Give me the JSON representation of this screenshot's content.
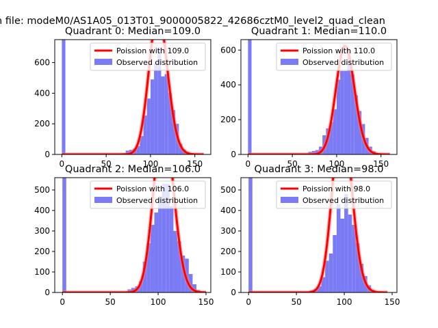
{
  "figure": {
    "suptitle": "n file: modeM0/AS1A05_013T01_9000005822_42686cztM0_level2_quad_clean"
  },
  "chart_data": [
    {
      "type": "bar",
      "title": "Quadrant 0: Median=109.0",
      "xlim": [
        -8,
        168
      ],
      "ylim": [
        0,
        750
      ],
      "xticks": [
        0,
        50,
        100,
        150
      ],
      "yticks": [
        0,
        200,
        400,
        600
      ],
      "legend": {
        "placement": "top-right",
        "entries": [
          "Poission with 109.0",
          "Observed distribution"
        ]
      },
      "colors": {
        "histogram": "#7b7bf5",
        "poisson": "#ff0000",
        "poisson_peak": "#f08080"
      },
      "histogram": {
        "name": "Observed distribution",
        "bin_width": 4,
        "bins": [
          [
            0,
            750
          ],
          [
            60,
            2
          ],
          [
            64,
            5
          ],
          [
            68,
            8
          ],
          [
            72,
            25
          ],
          [
            76,
            30
          ],
          [
            80,
            38
          ],
          [
            84,
            55
          ],
          [
            88,
            120
          ],
          [
            92,
            255
          ],
          [
            96,
            365
          ],
          [
            100,
            490
          ],
          [
            104,
            600
          ],
          [
            108,
            700
          ],
          [
            112,
            510
          ],
          [
            116,
            525
          ],
          [
            120,
            400
          ],
          [
            124,
            290
          ],
          [
            128,
            200
          ],
          [
            132,
            70
          ],
          [
            136,
            32
          ],
          [
            140,
            14
          ],
          [
            144,
            5
          ]
        ]
      },
      "poisson": {
        "name": "Poission with 109.0",
        "lambda": 109.0,
        "scale": 24000,
        "x_range": [
          0,
          160
        ]
      }
    },
    {
      "type": "bar",
      "title": "Quadrant 1: Median=110.0",
      "xlim": [
        -8,
        168
      ],
      "ylim": [
        0,
        660
      ],
      "xticks": [
        0,
        50,
        100,
        150
      ],
      "yticks": [
        0,
        200,
        400,
        600
      ],
      "legend": {
        "placement": "top-right",
        "entries": [
          "Poission with 110.0",
          "Observed distribution"
        ]
      },
      "colors": {
        "histogram": "#7b7bf5",
        "poisson": "#ff0000",
        "poisson_peak": "#f08080"
      },
      "histogram": {
        "name": "Observed distribution",
        "bin_width": 4,
        "bins": [
          [
            0,
            660
          ],
          [
            60,
            2
          ],
          [
            64,
            6
          ],
          [
            68,
            15
          ],
          [
            72,
            20
          ],
          [
            76,
            25
          ],
          [
            80,
            45
          ],
          [
            84,
            110
          ],
          [
            88,
            150
          ],
          [
            92,
            185
          ],
          [
            96,
            260
          ],
          [
            100,
            430
          ],
          [
            104,
            480
          ],
          [
            108,
            480
          ],
          [
            112,
            565
          ],
          [
            116,
            460
          ],
          [
            120,
            340
          ],
          [
            124,
            250
          ],
          [
            128,
            175
          ],
          [
            132,
            95
          ],
          [
            136,
            45
          ],
          [
            140,
            18
          ],
          [
            144,
            5
          ]
        ]
      },
      "poisson": {
        "name": "Poission with 110.0",
        "lambda": 110.0,
        "scale": 16400,
        "x_range": [
          0,
          160
        ]
      }
    },
    {
      "type": "bar",
      "title": "Quadrant 2: Median=106.0",
      "xlim": [
        -8,
        155
      ],
      "ylim": [
        0,
        560
      ],
      "xticks": [
        0,
        50,
        100,
        150
      ],
      "yticks": [
        0,
        100,
        200,
        300,
        400,
        500
      ],
      "legend": {
        "placement": "top-right",
        "entries": [
          "Poission with 106.0",
          "Observed distribution"
        ]
      },
      "colors": {
        "histogram": "#7b7bf5",
        "poisson": "#ff0000",
        "poisson_peak": "#f08080"
      },
      "histogram": {
        "name": "Observed distribution",
        "bin_width": 4,
        "bins": [
          [
            0,
            560
          ],
          [
            64,
            3
          ],
          [
            68,
            15
          ],
          [
            72,
            22
          ],
          [
            76,
            30
          ],
          [
            80,
            55
          ],
          [
            84,
            150
          ],
          [
            88,
            240
          ],
          [
            92,
            330
          ],
          [
            96,
            390
          ],
          [
            100,
            470
          ],
          [
            104,
            530
          ],
          [
            108,
            530
          ],
          [
            112,
            420
          ],
          [
            116,
            300
          ],
          [
            120,
            250
          ],
          [
            124,
            180
          ],
          [
            128,
            165
          ],
          [
            132,
            90
          ],
          [
            136,
            40
          ],
          [
            140,
            12
          ]
        ]
      },
      "poisson": {
        "name": "Poission with 106.0",
        "lambda": 106.0,
        "scale": 21800,
        "x_range": [
          0,
          150
        ]
      }
    },
    {
      "type": "bar",
      "title": "Quadrant 3: Median=98.0",
      "xlim": [
        -8,
        155
      ],
      "ylim": [
        0,
        560
      ],
      "xticks": [
        0,
        50,
        100,
        150
      ],
      "yticks": [
        0,
        100,
        200,
        300,
        400,
        500
      ],
      "legend": {
        "placement": "top-right",
        "entries": [
          "Poission with 98.0",
          "Observed distribution"
        ]
      },
      "colors": {
        "histogram": "#7b7bf5",
        "poisson": "#ff0000",
        "poisson_peak": "#f08080"
      },
      "histogram": {
        "name": "Observed distribution",
        "bin_width": 4,
        "bins": [
          [
            0,
            560
          ],
          [
            56,
            2
          ],
          [
            60,
            5
          ],
          [
            64,
            10
          ],
          [
            68,
            18
          ],
          [
            72,
            30
          ],
          [
            76,
            75
          ],
          [
            80,
            155
          ],
          [
            84,
            190
          ],
          [
            88,
            280
          ],
          [
            92,
            430
          ],
          [
            96,
            360
          ],
          [
            100,
            480
          ],
          [
            104,
            380
          ],
          [
            108,
            330
          ],
          [
            112,
            240
          ],
          [
            116,
            140
          ],
          [
            120,
            80
          ],
          [
            124,
            35
          ],
          [
            128,
            12
          ],
          [
            132,
            5
          ]
        ]
      },
      "poisson": {
        "name": "Poission with 98.0",
        "lambda": 98.0,
        "scale": 21500,
        "x_range": [
          0,
          145
        ]
      }
    }
  ]
}
